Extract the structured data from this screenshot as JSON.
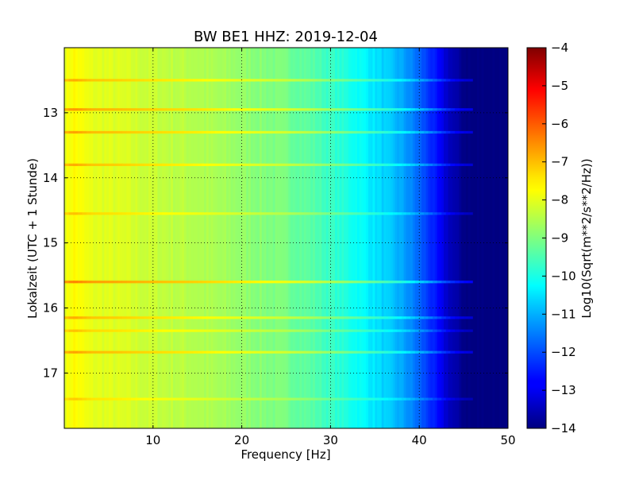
{
  "chart_data": {
    "type": "heatmap",
    "title": "BW BE1 HHZ: 2019-12-04",
    "xlabel": "Frequency [Hz]",
    "ylabel": "Lokalzeit (UTC + 1 Stunde)",
    "xlim": [
      0,
      50
    ],
    "ylim": [
      12.0,
      17.85
    ],
    "y_inverted": true,
    "x_ticks": [
      10,
      20,
      30,
      40,
      50
    ],
    "x_tick_labels": [
      "10",
      "20",
      "30",
      "40",
      "50"
    ],
    "y_ticks": [
      13,
      14,
      15,
      16,
      17
    ],
    "y_tick_labels": [
      "13",
      "14",
      "15",
      "16",
      "17"
    ],
    "grid": true,
    "colormap": "jet",
    "colorbar": {
      "label": "Log10(Sqrt(m**2/s**2/Hz))",
      "range": [
        -14,
        -4
      ],
      "ticks": [
        -4,
        -5,
        -6,
        -7,
        -8,
        -9,
        -10,
        -11,
        -12,
        -13,
        -14
      ],
      "tick_labels": [
        "−4",
        "−5",
        "−6",
        "−7",
        "−8",
        "−9",
        "−10",
        "−11",
        "−12",
        "−13",
        "−14"
      ]
    },
    "frequency_profile": {
      "x": [
        0,
        1,
        3,
        6,
        10,
        15,
        20,
        25,
        28,
        30,
        32,
        34,
        36,
        38,
        39,
        40,
        41,
        42,
        43,
        44,
        45,
        46,
        50
      ],
      "values": [
        -8.0,
        -7.7,
        -8.0,
        -8.1,
        -8.3,
        -8.5,
        -8.8,
        -9.1,
        -9.4,
        -9.7,
        -10.0,
        -10.3,
        -10.7,
        -11.1,
        -11.4,
        -11.8,
        -12.2,
        -12.7,
        -13.2,
        -13.6,
        -13.9,
        -14.0,
        -14.0
      ]
    },
    "high_power_bands": [
      {
        "time": 12.5,
        "delta": 0.8
      },
      {
        "time": 12.95,
        "delta": 1.0
      },
      {
        "time": 13.3,
        "delta": 0.9
      },
      {
        "time": 13.8,
        "delta": 0.8
      },
      {
        "time": 14.55,
        "delta": 0.6
      },
      {
        "time": 15.6,
        "delta": 1.2
      },
      {
        "time": 16.15,
        "delta": 0.8
      },
      {
        "time": 16.35,
        "delta": 0.6
      },
      {
        "time": 16.68,
        "delta": 0.9
      },
      {
        "time": 17.4,
        "delta": 0.5
      }
    ]
  }
}
